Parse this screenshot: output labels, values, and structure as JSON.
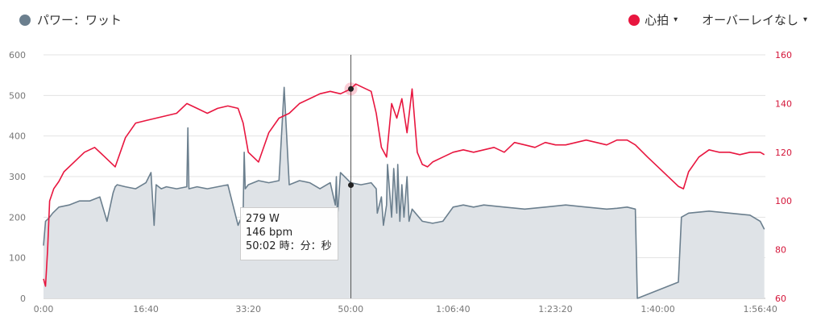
{
  "legend": {
    "power_label": "パワー：ワット",
    "power_color": "#6b7f8e",
    "hr_label": "心拍",
    "hr_color": "#e8163f",
    "overlay_label": "オーバーレイなし",
    "caret": "▾"
  },
  "tooltip": {
    "power": "279 W",
    "hr": "146 bpm",
    "time": "50:02 時：分：秒"
  },
  "chart_data": {
    "type": "line",
    "x_unit": "seconds",
    "x_ticks": [
      "0:00",
      "16:40",
      "33:20",
      "50:00",
      "1:06:40",
      "1:23:20",
      "1:40:00",
      "1:56:40"
    ],
    "xlim": [
      0,
      7050
    ],
    "y_left": {
      "ticks": [
        "0",
        "100",
        "200",
        "300",
        "400",
        "500",
        "600"
      ],
      "ylim": [
        0,
        600
      ]
    },
    "y_right": {
      "ticks": [
        "60",
        "80",
        "100",
        "120",
        "140",
        "160"
      ],
      "ylim": [
        60,
        160
      ]
    },
    "grid": true,
    "cursor_x": 3002,
    "series": [
      {
        "name": "パワー：ワット",
        "axis": "left",
        "style": "area",
        "color": "#6b7f8e",
        "x": [
          0,
          20,
          40,
          60,
          90,
          150,
          250,
          350,
          450,
          550,
          620,
          680,
          700,
          720,
          800,
          900,
          1000,
          1050,
          1080,
          1100,
          1150,
          1200,
          1300,
          1400,
          1410,
          1420,
          1500,
          1600,
          1700,
          1800,
          1900,
          1950,
          1960,
          1970,
          2000,
          2100,
          2200,
          2300,
          2350,
          2400,
          2500,
          2600,
          2700,
          2800,
          2850,
          2860,
          2870,
          2900,
          3000,
          3100,
          3200,
          3250,
          3260,
          3300,
          3320,
          3350,
          3360,
          3400,
          3420,
          3450,
          3460,
          3480,
          3500,
          3520,
          3550,
          3570,
          3600,
          3700,
          3800,
          3900,
          4000,
          4100,
          4200,
          4300,
          4500,
          4700,
          4900,
          5100,
          5300,
          5500,
          5600,
          5700,
          5780,
          5800,
          6200,
          6230,
          6300,
          6500,
          6700,
          6900,
          7000,
          7040
        ],
        "values": [
          130,
          190,
          195,
          200,
          210,
          225,
          230,
          240,
          240,
          250,
          190,
          260,
          275,
          280,
          275,
          270,
          285,
          310,
          180,
          280,
          270,
          275,
          270,
          275,
          420,
          270,
          275,
          270,
          275,
          280,
          180,
          210,
          360,
          270,
          280,
          290,
          285,
          290,
          520,
          280,
          290,
          285,
          270,
          285,
          230,
          300,
          200,
          310,
          285,
          280,
          285,
          270,
          210,
          250,
          180,
          230,
          330,
          200,
          320,
          210,
          330,
          190,
          280,
          200,
          300,
          190,
          220,
          190,
          185,
          190,
          225,
          230,
          225,
          230,
          225,
          220,
          225,
          230,
          225,
          220,
          222,
          225,
          220,
          0,
          40,
          200,
          210,
          215,
          210,
          205,
          190,
          170
        ]
      },
      {
        "name": "心拍",
        "axis": "right",
        "style": "line",
        "color": "#e8163f",
        "x": [
          0,
          20,
          40,
          60,
          100,
          150,
          200,
          300,
          400,
          500,
          600,
          700,
          800,
          900,
          1000,
          1100,
          1200,
          1300,
          1400,
          1500,
          1600,
          1700,
          1800,
          1900,
          1950,
          2000,
          2050,
          2100,
          2200,
          2300,
          2400,
          2500,
          2600,
          2700,
          2800,
          2900,
          3000,
          3050,
          3100,
          3200,
          3250,
          3300,
          3350,
          3400,
          3450,
          3500,
          3550,
          3600,
          3650,
          3700,
          3750,
          3800,
          3900,
          4000,
          4100,
          4200,
          4300,
          4400,
          4500,
          4600,
          4700,
          4800,
          4900,
          5000,
          5100,
          5200,
          5300,
          5400,
          5500,
          5600,
          5700,
          5780,
          5900,
          6000,
          6200,
          6250,
          6300,
          6400,
          6500,
          6600,
          6700,
          6800,
          6900,
          7000,
          7040
        ],
        "values": [
          68,
          65,
          80,
          100,
          105,
          108,
          112,
          116,
          120,
          122,
          118,
          114,
          126,
          132,
          133,
          134,
          135,
          136,
          140,
          138,
          136,
          138,
          139,
          138,
          132,
          120,
          118,
          116,
          128,
          134,
          136,
          140,
          142,
          144,
          145,
          144,
          146,
          148,
          147,
          145,
          136,
          122,
          118,
          140,
          134,
          142,
          128,
          146,
          120,
          115,
          114,
          116,
          118,
          120,
          121,
          120,
          121,
          122,
          120,
          124,
          123,
          122,
          124,
          123,
          123,
          124,
          125,
          124,
          123,
          125,
          125,
          123,
          118,
          114,
          106,
          105,
          112,
          118,
          121,
          120,
          120,
          119,
          120,
          120,
          119
        ]
      }
    ]
  }
}
